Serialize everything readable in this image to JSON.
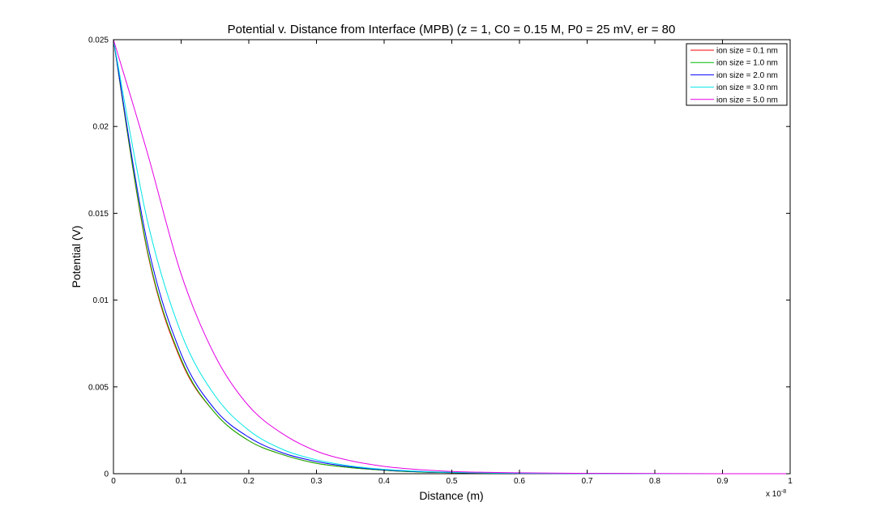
{
  "chart_data": {
    "type": "line",
    "title": "Potential v. Distance from Interface (MPB) (z = 1, C0 = 0.15 M, P0 = 25 mV, er = 80",
    "xlabel": "Distance (m)",
    "ylabel": "Potential (V)",
    "x_multiplier": "x 10",
    "x_multiplier_exp": "-8",
    "xlim": [
      0,
      1
    ],
    "ylim": [
      0,
      0.025
    ],
    "xticks": [
      0,
      0.1,
      0.2,
      0.3,
      0.4,
      0.5,
      0.6,
      0.7,
      0.8,
      0.9,
      1
    ],
    "xtick_labels": [
      "0",
      "0.1",
      "0.2",
      "0.3",
      "0.4",
      "0.5",
      "0.6",
      "0.7",
      "0.8",
      "0.9",
      "1"
    ],
    "yticks": [
      0,
      0.005,
      0.01,
      0.015,
      0.02,
      0.025
    ],
    "ytick_labels": [
      "0",
      "0.005",
      "0.01",
      "0.015",
      "0.02",
      "0.025"
    ],
    "legend_position": "top-right",
    "grid": false,
    "x": [
      0,
      0.05,
      0.1,
      0.15,
      0.2,
      0.25,
      0.3,
      0.35,
      0.4,
      0.45,
      0.5,
      0.55,
      0.6,
      0.7,
      0.8,
      0.9,
      1.0
    ],
    "series": [
      {
        "name": "ion size = 0.1 nm",
        "color": "#ff0000",
        "values": [
          0.025,
          0.0128,
          0.0065,
          0.0035,
          0.0019,
          0.0011,
          0.0006,
          0.00035,
          0.0002,
          0.0001,
          6e-05,
          3e-05,
          2e-05,
          1e-05,
          0.0,
          0.0,
          0.0
        ]
      },
      {
        "name": "ion size = 1.0 nm",
        "color": "#00bb00",
        "values": [
          0.025,
          0.0129,
          0.0066,
          0.0035,
          0.0019,
          0.0011,
          0.0006,
          0.00035,
          0.0002,
          0.0001,
          6e-05,
          3e-05,
          2e-05,
          1e-05,
          0.0,
          0.0,
          0.0
        ]
      },
      {
        "name": "ion size = 2.0 nm",
        "color": "#0000ff",
        "values": [
          0.025,
          0.0133,
          0.0069,
          0.0037,
          0.0021,
          0.0012,
          0.0007,
          0.0004,
          0.00022,
          0.00012,
          7e-05,
          4e-05,
          2e-05,
          1e-05,
          0.0,
          0.0,
          0.0
        ]
      },
      {
        "name": "ion size = 3.0 nm",
        "color": "#00e5e5",
        "values": [
          0.025,
          0.0146,
          0.0081,
          0.0045,
          0.0025,
          0.0014,
          0.0008,
          0.00045,
          0.00025,
          0.00014,
          8e-05,
          5e-05,
          3e-05,
          1e-05,
          0.0,
          0.0,
          0.0
        ]
      },
      {
        "name": "ion size = 5.0 nm",
        "color": "#e500e5",
        "values": [
          0.025,
          0.0185,
          0.0115,
          0.0068,
          0.0039,
          0.0023,
          0.0013,
          0.00075,
          0.00042,
          0.00024,
          0.00013,
          8e-05,
          5e-05,
          2e-05,
          1e-05,
          0.0,
          0.0
        ]
      }
    ]
  }
}
